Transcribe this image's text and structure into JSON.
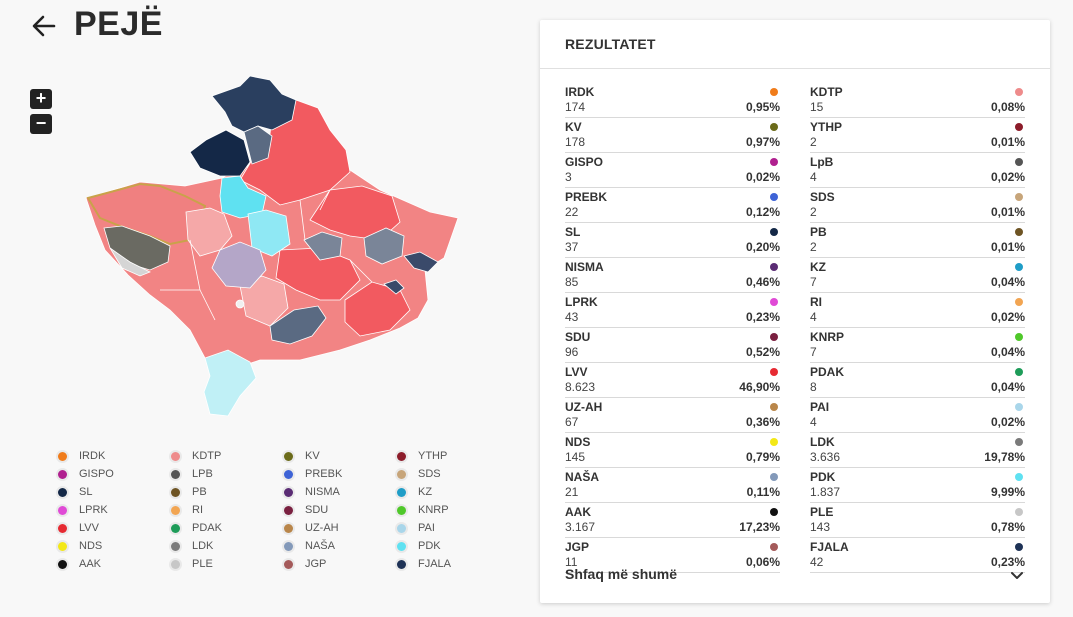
{
  "header": {
    "title": "PEJË"
  },
  "zoom": {
    "in_label": "+",
    "out_label": "−"
  },
  "panel": {
    "title": "REZULTATET",
    "show_more": "Shfaq më shumë"
  },
  "legend": [
    {
      "name": "IRDK",
      "color": "#f07c1b"
    },
    {
      "name": "KDTP",
      "color": "#ee8b8b"
    },
    {
      "name": "KV",
      "color": "#6b6b1a"
    },
    {
      "name": "YTHP",
      "color": "#8c1c2a"
    },
    {
      "name": "GISPO",
      "color": "#b0208f"
    },
    {
      "name": "LPB",
      "color": "#555555"
    },
    {
      "name": "PREBK",
      "color": "#3e63d6"
    },
    {
      "name": "SDS",
      "color": "#c7a57a"
    },
    {
      "name": "SL",
      "color": "#142847"
    },
    {
      "name": "PB",
      "color": "#6e5424"
    },
    {
      "name": "NISMA",
      "color": "#5a2c74"
    },
    {
      "name": "KZ",
      "color": "#1f9dc7"
    },
    {
      "name": "LPRK",
      "color": "#e04ad6"
    },
    {
      "name": "RI",
      "color": "#f2a552"
    },
    {
      "name": "SDU",
      "color": "#7a2040"
    },
    {
      "name": "KNRP",
      "color": "#4fc82a"
    },
    {
      "name": "LVV",
      "color": "#e62a32"
    },
    {
      "name": "PDAK",
      "color": "#1e9c59"
    },
    {
      "name": "UZ-AH",
      "color": "#b9864a"
    },
    {
      "name": "PAI",
      "color": "#a9d6ea"
    },
    {
      "name": "NDS",
      "color": "#f3e817"
    },
    {
      "name": "LDK",
      "color": "#7a7a7a"
    },
    {
      "name": "NAŠA",
      "color": "#8399b9"
    },
    {
      "name": "PDK",
      "color": "#5fe1f1"
    },
    {
      "name": "AAK",
      "color": "#111111"
    },
    {
      "name": "PLE",
      "color": "#c7c7c7"
    },
    {
      "name": "JGP",
      "color": "#a45a5a"
    },
    {
      "name": "FJALA",
      "color": "#1e3256"
    }
  ],
  "results": [
    {
      "name": "IRDK",
      "votes": "174",
      "pct": "0,95%",
      "color": "#f07c1b"
    },
    {
      "name": "KDTP",
      "votes": "15",
      "pct": "0,08%",
      "color": "#ee8b8b"
    },
    {
      "name": "KV",
      "votes": "178",
      "pct": "0,97%",
      "color": "#6b6b1a"
    },
    {
      "name": "YTHP",
      "votes": "2",
      "pct": "0,01%",
      "color": "#8c1c2a"
    },
    {
      "name": "GISPO",
      "votes": "3",
      "pct": "0,02%",
      "color": "#b0208f"
    },
    {
      "name": "LpB",
      "votes": "4",
      "pct": "0,02%",
      "color": "#555555"
    },
    {
      "name": "PREBK",
      "votes": "22",
      "pct": "0,12%",
      "color": "#3e63d6"
    },
    {
      "name": "SDS",
      "votes": "2",
      "pct": "0,01%",
      "color": "#c7a57a"
    },
    {
      "name": "SL",
      "votes": "37",
      "pct": "0,20%",
      "color": "#142847"
    },
    {
      "name": "PB",
      "votes": "2",
      "pct": "0,01%",
      "color": "#6e5424"
    },
    {
      "name": "NISMA",
      "votes": "85",
      "pct": "0,46%",
      "color": "#5a2c74"
    },
    {
      "name": "KZ",
      "votes": "7",
      "pct": "0,04%",
      "color": "#1f9dc7"
    },
    {
      "name": "LPRK",
      "votes": "43",
      "pct": "0,23%",
      "color": "#e04ad6"
    },
    {
      "name": "RI",
      "votes": "4",
      "pct": "0,02%",
      "color": "#f2a552"
    },
    {
      "name": "SDU",
      "votes": "96",
      "pct": "0,52%",
      "color": "#7a2040"
    },
    {
      "name": "KNRP",
      "votes": "7",
      "pct": "0,04%",
      "color": "#4fc82a"
    },
    {
      "name": "LVV",
      "votes": "8.623",
      "pct": "46,90%",
      "color": "#e62a32"
    },
    {
      "name": "PDAK",
      "votes": "8",
      "pct": "0,04%",
      "color": "#1e9c59"
    },
    {
      "name": "UZ-AH",
      "votes": "67",
      "pct": "0,36%",
      "color": "#b9864a"
    },
    {
      "name": "PAI",
      "votes": "4",
      "pct": "0,02%",
      "color": "#a9d6ea"
    },
    {
      "name": "NDS",
      "votes": "145",
      "pct": "0,79%",
      "color": "#f3e817"
    },
    {
      "name": "LDK",
      "votes": "3.636",
      "pct": "19,78%",
      "color": "#7a7a7a"
    },
    {
      "name": "NAŠA",
      "votes": "21",
      "pct": "0,11%",
      "color": "#8399b9"
    },
    {
      "name": "PDK",
      "votes": "1.837",
      "pct": "9,99%",
      "color": "#5fe1f1"
    },
    {
      "name": "AAK",
      "votes": "3.167",
      "pct": "17,23%",
      "color": "#111111"
    },
    {
      "name": "PLE",
      "votes": "143",
      "pct": "0,78%",
      "color": "#c7c7c7"
    },
    {
      "name": "JGP",
      "votes": "11",
      "pct": "0,06%",
      "color": "#a45a5a"
    },
    {
      "name": "FJALA",
      "votes": "42",
      "pct": "0,23%",
      "color": "#1e3256"
    }
  ]
}
